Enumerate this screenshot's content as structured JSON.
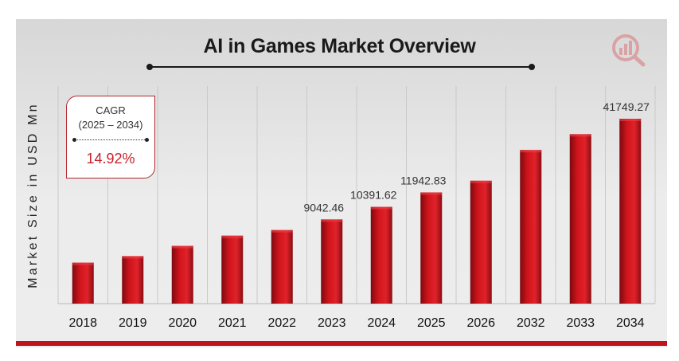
{
  "chart_data": {
    "type": "bar",
    "title": "AI in Games Market Overview",
    "ylabel": "Market Size in USD Mn",
    "xlabel": "",
    "categories": [
      "2018",
      "2019",
      "2020",
      "2021",
      "2022",
      "2023",
      "2024",
      "2025",
      "2026",
      "2032",
      "2033",
      "2034"
    ],
    "values": [
      4400,
      5100,
      6200,
      7300,
      7900,
      9042.46,
      10391.62,
      11942.83,
      13200,
      16500,
      18200,
      41749.27
    ],
    "data_labels": [
      "",
      "",
      "",
      "",
      "",
      "9042.46",
      "10391.62",
      "11942.83",
      "",
      "",
      "",
      "41749.27"
    ],
    "grid": true,
    "bar_color": "#d0141c"
  },
  "cagr": {
    "title": "CAGR",
    "range": "(2025 – 2034)",
    "value": "14.92%"
  },
  "colors": {
    "accent": "#c0141c",
    "frame": "#e6e6e6"
  },
  "icons": {
    "logo": "chart-magnifier-logo-icon"
  }
}
